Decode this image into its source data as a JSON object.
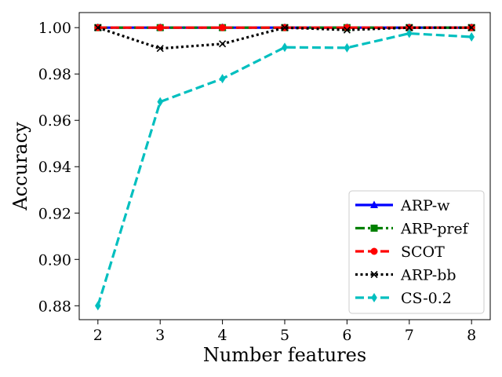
{
  "chart_data": {
    "type": "line",
    "title": "",
    "xlabel": "Number features",
    "ylabel": "Accuracy",
    "x": [
      2,
      3,
      4,
      5,
      6,
      7,
      8
    ],
    "xlim": [
      1.7,
      8.3
    ],
    "ylim": [
      0.874,
      1.0065
    ],
    "xticks": [
      "2",
      "3",
      "4",
      "5",
      "6",
      "7",
      "8"
    ],
    "yticks": [
      0.88,
      0.9,
      0.92,
      0.94,
      0.96,
      0.98,
      1.0
    ],
    "ytick_labels": [
      "0.88",
      "0.90",
      "0.92",
      "0.94",
      "0.96",
      "0.98",
      "1.00"
    ],
    "grid": false,
    "legend_position": "lower-right",
    "series": [
      {
        "name": "ARP-w",
        "color": "#0000ff",
        "marker": "triangle",
        "linestyle": "solid",
        "values": [
          1.0,
          1.0,
          1.0,
          1.0,
          1.0,
          1.0,
          1.0
        ]
      },
      {
        "name": "ARP-pref",
        "color": "#008000",
        "marker": "square",
        "linestyle": "dashdot",
        "values": [
          1.0,
          1.0,
          1.0,
          1.0,
          1.0,
          1.0,
          1.0
        ]
      },
      {
        "name": "SCOT",
        "color": "#ff0000",
        "marker": "circle",
        "linestyle": "dashed",
        "values": [
          1.0,
          1.0,
          1.0,
          1.0,
          1.0,
          1.0,
          1.0
        ]
      },
      {
        "name": "ARP-bb",
        "color": "#000000",
        "marker": "x",
        "linestyle": "dotted",
        "values": [
          1.0,
          0.991,
          0.993,
          1.0,
          0.999,
          1.0,
          1.0
        ]
      },
      {
        "name": "CS-0.2",
        "color": "#00bfbf",
        "marker": "diamond",
        "linestyle": "dashed",
        "values": [
          0.88,
          0.968,
          0.978,
          0.9915,
          0.9913,
          0.9975,
          0.996
        ]
      }
    ]
  }
}
